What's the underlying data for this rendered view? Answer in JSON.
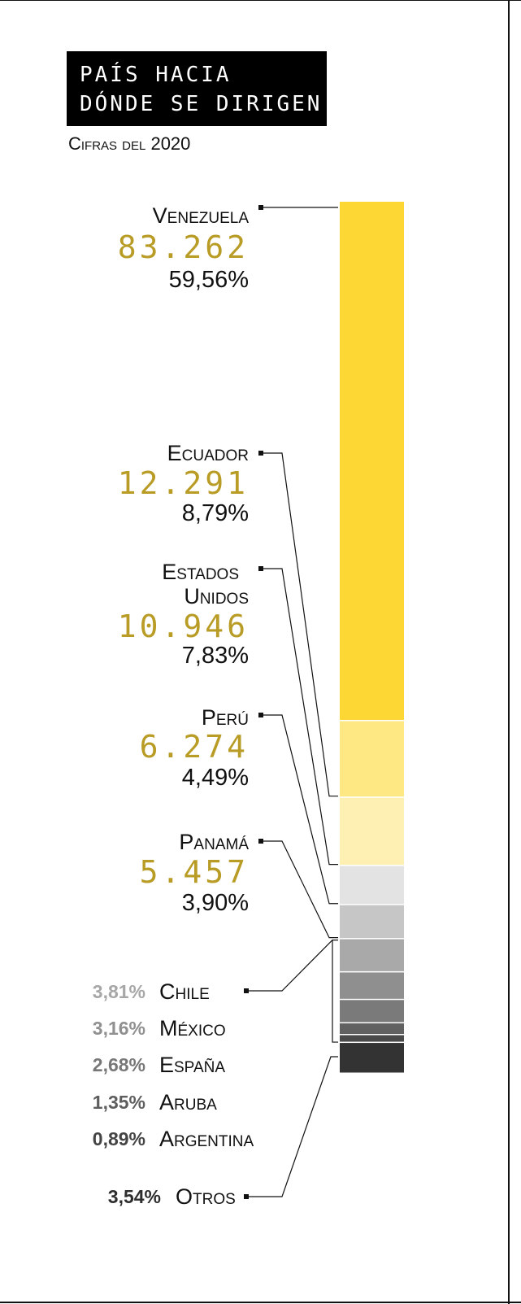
{
  "title": {
    "line1": "PAÍS HACIA",
    "line2": "DÓNDE SE DIRIGEN"
  },
  "subtitle": "Cifras del 2020",
  "colors": {
    "accent_number": "#b99c25",
    "leader": "#111111"
  },
  "chart_data": {
    "type": "bar",
    "subtype": "stacked-100-vertical",
    "title": "PAÍS HACIA DÓNDE SE DIRIGEN",
    "subtitle": "Cifras del 2020",
    "categories": [
      "Venezuela",
      "Ecuador",
      "Estados Unidos",
      "Perú",
      "Panamá",
      "Chile",
      "México",
      "España",
      "Aruba",
      "Argentina",
      "Otros"
    ],
    "values": [
      83262,
      12291,
      10946,
      6274,
      5457,
      null,
      null,
      null,
      null,
      null,
      null
    ],
    "percent": [
      59.56,
      8.79,
      7.83,
      4.49,
      3.9,
      3.81,
      3.16,
      2.68,
      1.35,
      0.89,
      3.54
    ],
    "segment_colors": [
      "#fdd835",
      "#fde883",
      "#fef0b3",
      "#e3e3e3",
      "#c6c6c6",
      "#a9a9a9",
      "#8f8f8f",
      "#7a7a7a",
      "#616161",
      "#4a4a4a",
      "#333333"
    ]
  },
  "major_labels": [
    {
      "name": "Venezuela",
      "number": "83.262",
      "pct": "59,56%"
    },
    {
      "name": "Ecuador",
      "number": "12.291",
      "pct": "8,79%"
    },
    {
      "name": "Estados Unidos",
      "name_line1": "Estados",
      "name_line2": "Unidos",
      "number": "10.946",
      "pct": "7,83%"
    },
    {
      "name": "Perú",
      "number": "6.274",
      "pct": "4,49%"
    },
    {
      "name": "Panamá",
      "number": "5.457",
      "pct": "3,90%"
    }
  ],
  "minor_labels": [
    {
      "pct": "3,81%",
      "name": "Chile",
      "color": "#a7a7a7"
    },
    {
      "pct": "3,16%",
      "name": "México",
      "color": "#909090"
    },
    {
      "pct": "2,68%",
      "name": "España",
      "color": "#777777"
    },
    {
      "pct": "1,35%",
      "name": "Aruba",
      "color": "#5e5e5e"
    },
    {
      "pct": "0,89%",
      "name": "Argentina",
      "color": "#444444"
    },
    {
      "pct": "3,54%",
      "name": "Otros",
      "color": "#2e2e2e"
    }
  ]
}
